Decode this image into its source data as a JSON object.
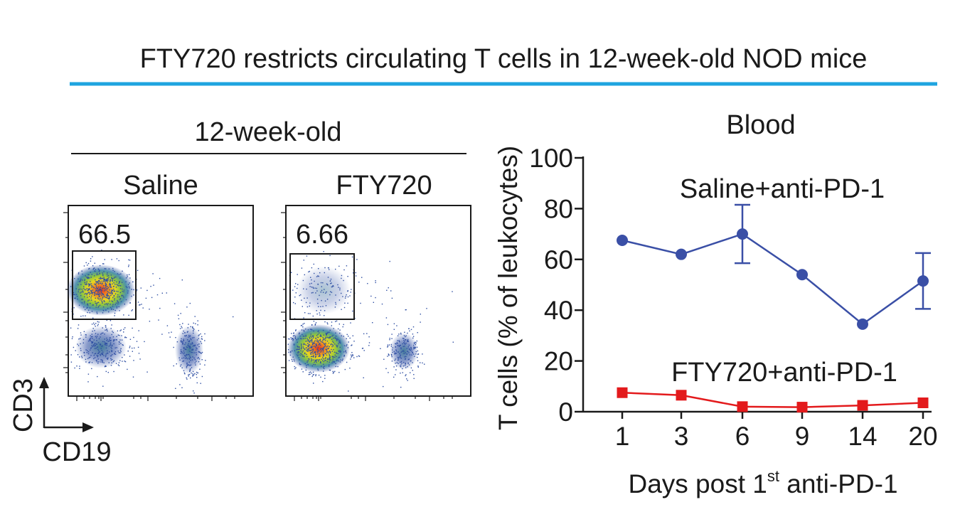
{
  "figure_title": "FTY720 restricts circulating T cells in 12-week-old NOD mice",
  "colors": {
    "accent_rule": "#1fa4e0",
    "saline": "#3a4fa6",
    "fty720": "#e31a1c",
    "ink": "#1a1a1a"
  },
  "flow_panel": {
    "group_header": "12-week-old",
    "y_marker": "CD3",
    "x_marker": "CD19",
    "plots": [
      {
        "label": "Saline",
        "gate_percent": "66.5"
      },
      {
        "label": "FTY720",
        "gate_percent": "6.66"
      }
    ]
  },
  "chart_data": {
    "type": "line",
    "title": "Blood",
    "xlabel_main": "Days post 1",
    "xlabel_sup": "st",
    "xlabel_tail": " anti-PD-1",
    "ylabel": "T cells (% of leukocytes)",
    "ylim": [
      0,
      100
    ],
    "yticks": [
      "0",
      "20",
      "40",
      "60",
      "80",
      "100"
    ],
    "categories": [
      "1",
      "3",
      "6",
      "9",
      "14",
      "20"
    ],
    "series": [
      {
        "name": "Saline+anti-PD-1",
        "marker": "circle",
        "values": [
          67.5,
          62,
          70,
          54,
          34.5,
          51.5
        ],
        "error": [
          0,
          0,
          11.5,
          0,
          0,
          11
        ]
      },
      {
        "name": "FTY720+anti-PD-1",
        "marker": "square",
        "values": [
          7.5,
          6.5,
          2,
          1.8,
          2.5,
          3.5
        ],
        "error": [
          0,
          0,
          0,
          0,
          0,
          0
        ]
      }
    ]
  }
}
